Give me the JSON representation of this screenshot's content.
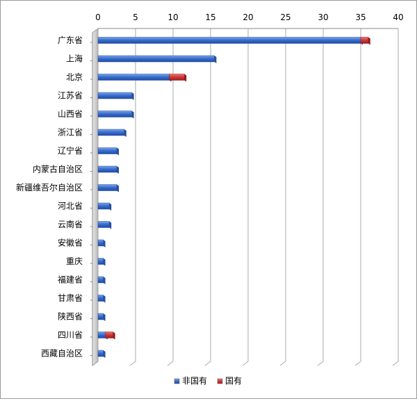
{
  "chart_data": {
    "type": "bar",
    "orientation": "horizontal",
    "stacked": true,
    "categories": [
      "广东省",
      "上海",
      "北京",
      "江苏省",
      "山西省",
      "浙江省",
      "辽宁省",
      "内蒙古自治区",
      "新疆维吾尔自治区",
      "河北省",
      "云南省",
      "安徽省",
      "重庆",
      "福建省",
      "甘肃省",
      "陕西省",
      "四川省",
      "西藏自治区"
    ],
    "series": [
      {
        "name": "非国有",
        "color": "#3a6fd0",
        "values": [
          35,
          15.5,
          9.5,
          4.5,
          4.5,
          3.5,
          2.5,
          2.5,
          2.5,
          1.5,
          1.5,
          0.7,
          0.7,
          0.7,
          0.7,
          0.7,
          1,
          0.7
        ]
      },
      {
        "name": "国有",
        "color": "#d23a3a",
        "values": [
          1,
          0,
          2,
          0,
          0,
          0,
          0,
          0,
          0,
          0,
          0,
          0,
          0,
          0,
          0,
          0,
          1,
          0
        ]
      }
    ],
    "xlim": [
      0,
      40
    ],
    "xticks": [
      "0",
      "5",
      "10",
      "15",
      "20",
      "25",
      "30",
      "35",
      "40"
    ],
    "grid": true,
    "legend": "bottom"
  }
}
